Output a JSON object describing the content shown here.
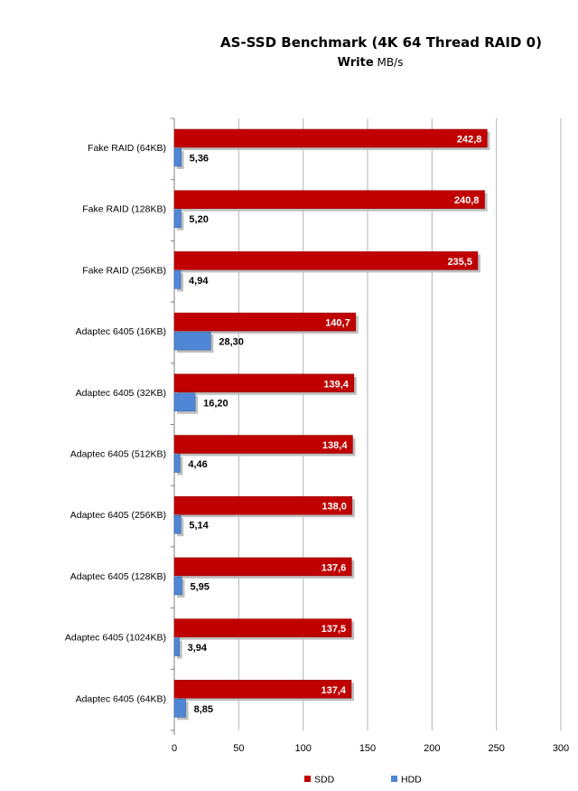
{
  "chart_data": {
    "type": "bar",
    "orientation": "horizontal",
    "title": "AS-SSD Benchmark (4K 64 Thread RAID 0)",
    "subtitle_bold": "Write",
    "subtitle_rest": " MB/s",
    "categories": [
      "Fake RAID (64KB)",
      "Fake RAID (128KB)",
      "Fake RAID (256KB)",
      "Adaptec 6405 (16KB)",
      "Adaptec 6405 (32KB)",
      "Adaptec 6405 (512KB)",
      "Adaptec 6405 (256KB)",
      "Adaptec 6405 (128KB)",
      "Adaptec 6405 (1024KB)",
      "Adaptec 6405 (64KB)"
    ],
    "series": [
      {
        "name": "SDD",
        "color": "#c00000",
        "values": [
          242.8,
          240.8,
          235.5,
          140.7,
          139.4,
          138.4,
          138.0,
          137.6,
          137.5,
          137.4
        ],
        "labels": [
          "242,8",
          "240,8",
          "235,5",
          "140,7",
          "139,4",
          "138,4",
          "138,0",
          "137,6",
          "137,5",
          "137,4"
        ]
      },
      {
        "name": "HDD",
        "color": "#4f86d6",
        "values": [
          5.36,
          5.2,
          4.94,
          28.3,
          16.2,
          4.46,
          5.14,
          5.95,
          3.94,
          8.85
        ],
        "labels": [
          "5,36",
          "5,20",
          "4,94",
          "28,30",
          "16,20",
          "4,46",
          "5,14",
          "5,95",
          "3,94",
          "8,85"
        ]
      }
    ],
    "xlim": [
      0,
      300
    ],
    "xticks": [
      0,
      50,
      100,
      150,
      200,
      250,
      300
    ],
    "xtick_labels": [
      "0",
      "50",
      "100",
      "150",
      "200",
      "250",
      "300"
    ],
    "grid": true,
    "legend_position": "bottom"
  }
}
